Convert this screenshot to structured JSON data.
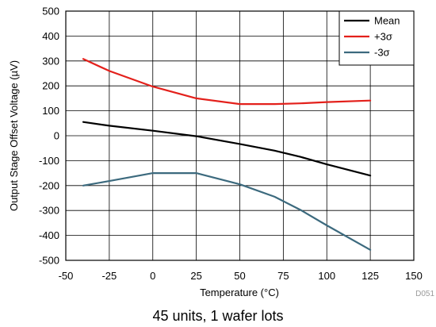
{
  "chart_data": {
    "type": "line",
    "xlabel": "Temperature (°C)",
    "ylabel": "Output Stage Offset Voltage (µV)",
    "xlim": [
      -50,
      150
    ],
    "ylim": [
      -500,
      500
    ],
    "xticks": [
      -50,
      -25,
      0,
      25,
      50,
      75,
      100,
      125,
      150
    ],
    "yticks": [
      -500,
      -400,
      -300,
      -200,
      -100,
      0,
      100,
      200,
      300,
      400,
      500
    ],
    "grid": true,
    "legend_position": "top-right",
    "series": [
      {
        "name": "Mean",
        "color": "#000000",
        "x": [
          -40,
          -25,
          0,
          25,
          50,
          70,
          85,
          100,
          125
        ],
        "y": [
          55,
          40,
          20,
          -2,
          -33,
          -60,
          -85,
          -115,
          -160
        ]
      },
      {
        "name": "+3σ",
        "color": "#e3201b",
        "x": [
          -40,
          -25,
          0,
          25,
          50,
          70,
          85,
          100,
          125
        ],
        "y": [
          308,
          260,
          197,
          150,
          127,
          127,
          130,
          135,
          141
        ]
      },
      {
        "name": "-3σ",
        "color": "#3c6a7e",
        "x": [
          -40,
          -25,
          0,
          25,
          50,
          70,
          85,
          100,
          125
        ],
        "y": [
          -200,
          -182,
          -150,
          -150,
          -195,
          -245,
          -298,
          -360,
          -458
        ]
      }
    ]
  },
  "figure_code": "D051",
  "caption": "45 units, 1 wafer lots"
}
